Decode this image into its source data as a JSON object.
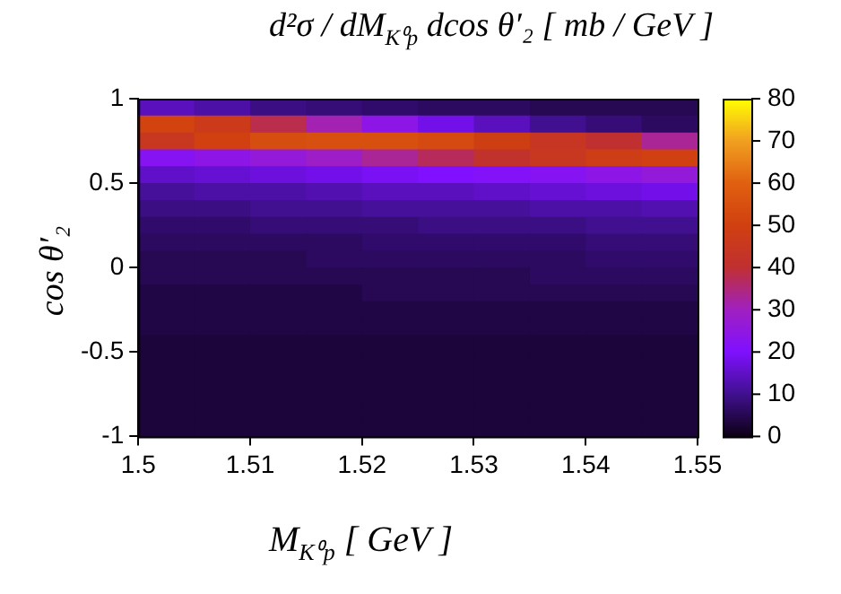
{
  "chart_data": {
    "type": "heatmap",
    "title": "d²σ / dM$_{K⁰p}$ dcos θ′₂  [ mb / GeV ]",
    "xlabel": "M$_{K⁰p}$  [ GeV ]",
    "ylabel": "cos θ′₂",
    "xlim": [
      1.5,
      1.55
    ],
    "xticks": [
      1.5,
      1.51,
      1.52,
      1.53,
      1.54,
      1.55
    ],
    "ylim": [
      -1,
      1
    ],
    "yticks": [
      -1,
      -0.5,
      0,
      0.5,
      1
    ],
    "clim": [
      0,
      80
    ],
    "cticks": [
      0,
      10,
      20,
      30,
      40,
      50,
      60,
      70,
      80
    ],
    "cells": [
      [
        14,
        12,
        9,
        8,
        7,
        6,
        6,
        5,
        5,
        5
      ],
      [
        51,
        47,
        38,
        31,
        24,
        18,
        14,
        10,
        8,
        6
      ],
      [
        45,
        50,
        54,
        55,
        55,
        53,
        49,
        44,
        40,
        33
      ],
      [
        22,
        24,
        26,
        29,
        33,
        37,
        41,
        45,
        48,
        50
      ],
      [
        15,
        16,
        17,
        18,
        19,
        20,
        21,
        22,
        24,
        26
      ],
      [
        11,
        12,
        12,
        13,
        14,
        14,
        15,
        16,
        17,
        18
      ],
      [
        9,
        9,
        10,
        10,
        11,
        11,
        11,
        12,
        12,
        13
      ],
      [
        7,
        7,
        8,
        8,
        8,
        9,
        9,
        9,
        10,
        10
      ],
      [
        6,
        6,
        6,
        6,
        7,
        7,
        7,
        7,
        8,
        8
      ],
      [
        5,
        5,
        5,
        6,
        6,
        6,
        6,
        6,
        7,
        7
      ],
      [
        5,
        5,
        5,
        5,
        5,
        5,
        5,
        6,
        6,
        6
      ],
      [
        4,
        4,
        4,
        4,
        5,
        5,
        5,
        5,
        5,
        5
      ],
      [
        4,
        4,
        4,
        4,
        4,
        4,
        4,
        4,
        4,
        4
      ],
      [
        4,
        4,
        4,
        4,
        4,
        4,
        4,
        4,
        4,
        4
      ],
      [
        3,
        3,
        3,
        3,
        3,
        3,
        3,
        3,
        3,
        3
      ],
      [
        3,
        3,
        3,
        3,
        3,
        3,
        3,
        3,
        3,
        3
      ],
      [
        3,
        3,
        3,
        3,
        3,
        3,
        3,
        3,
        3,
        3
      ],
      [
        3,
        3,
        3,
        3,
        3,
        3,
        3,
        3,
        3,
        3
      ],
      [
        3,
        3,
        3,
        3,
        3,
        3,
        3,
        3,
        3,
        3
      ],
      [
        3,
        3,
        3,
        3,
        3,
        3,
        3,
        3,
        3,
        3
      ]
    ]
  }
}
